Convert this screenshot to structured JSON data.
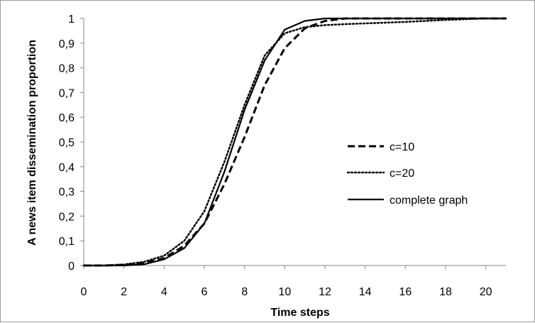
{
  "chart_data": {
    "type": "line",
    "title": "",
    "xlabel": "Time steps",
    "ylabel": "A news item dissemination proportion",
    "xlim": [
      0,
      21
    ],
    "ylim": [
      0,
      1
    ],
    "x_ticks": [
      0,
      2,
      4,
      6,
      8,
      10,
      12,
      14,
      16,
      18,
      20
    ],
    "x_tick_labels": [
      "0",
      "2",
      "4",
      "6",
      "8",
      "10",
      "12",
      "14",
      "16",
      "18",
      "20"
    ],
    "y_ticks": [
      0,
      0.1,
      0.2,
      0.3,
      0.4,
      0.5,
      0.6,
      0.7,
      0.8,
      0.9,
      1
    ],
    "y_tick_labels": [
      "0",
      "0,1",
      "0,2",
      "0,3",
      "0,4",
      "0,5",
      "0,6",
      "0,7",
      "0,8",
      "0,9",
      "1"
    ],
    "grid": false,
    "legend_position": "right",
    "series": [
      {
        "name": "c=10",
        "style": "dashed",
        "color": "#000000",
        "x": [
          0,
          1,
          2,
          3,
          4,
          5,
          6,
          7,
          8,
          9,
          10,
          11,
          12,
          13,
          14,
          15,
          16,
          17,
          18,
          19,
          20,
          21
        ],
        "y": [
          0,
          0,
          0.003,
          0.01,
          0.03,
          0.08,
          0.17,
          0.33,
          0.52,
          0.73,
          0.88,
          0.96,
          0.99,
          1,
          1,
          1,
          1,
          1,
          1,
          1,
          1,
          1
        ]
      },
      {
        "name": "c=20",
        "style": "dotted",
        "color": "#000000",
        "x": [
          0,
          1,
          2,
          3,
          4,
          5,
          6,
          7,
          8,
          9,
          10,
          11,
          12,
          13,
          14,
          15,
          16,
          17,
          18,
          19,
          20,
          21
        ],
        "y": [
          0,
          0,
          0.004,
          0.015,
          0.04,
          0.1,
          0.22,
          0.42,
          0.65,
          0.85,
          0.94,
          0.965,
          0.973,
          0.977,
          0.98,
          0.983,
          0.986,
          0.99,
          0.994,
          0.997,
          1,
          1
        ]
      },
      {
        "name": "complete graph",
        "style": "solid",
        "color": "#000000",
        "x": [
          0,
          1,
          2,
          3,
          4,
          5,
          6,
          7,
          8,
          9,
          10,
          11,
          12,
          13,
          14,
          15,
          16,
          17,
          18,
          19,
          20,
          21
        ],
        "y": [
          0,
          0,
          0,
          0.005,
          0.025,
          0.07,
          0.17,
          0.38,
          0.63,
          0.83,
          0.955,
          0.99,
          1,
          1,
          1,
          1,
          1,
          1,
          1,
          1,
          1,
          1
        ]
      }
    ]
  }
}
